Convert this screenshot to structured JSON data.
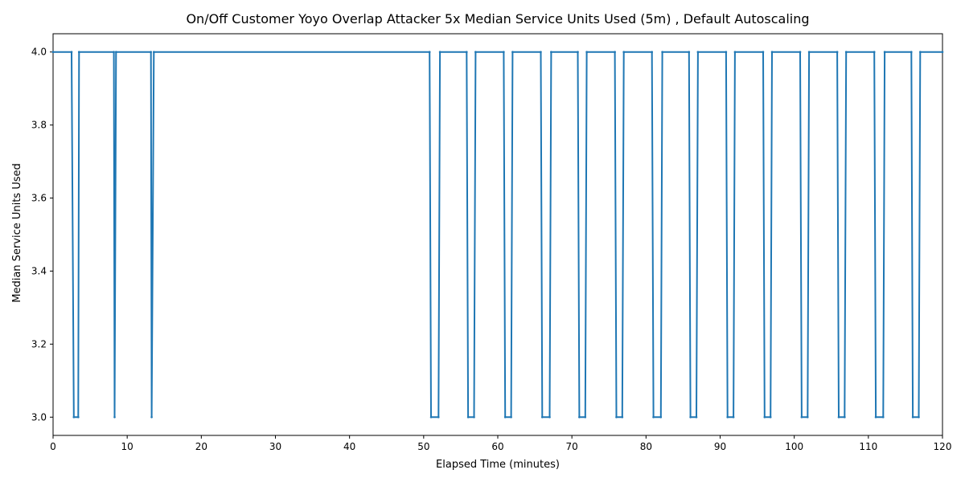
{
  "chart_data": {
    "type": "line",
    "title": "On/Off Customer Yoyo Overlap Attacker 5x Median Service Units Used (5m) , Default Autoscaling",
    "xlabel": "Elapsed Time (minutes)",
    "ylabel": "Median Service Units Used",
    "xlim": [
      0,
      120
    ],
    "ylim": [
      2.95,
      4.05
    ],
    "x_ticks": [
      "0",
      "10",
      "20",
      "30",
      "40",
      "50",
      "60",
      "70",
      "80",
      "90",
      "100",
      "110",
      "120"
    ],
    "y_ticks": [
      "3.0",
      "3.2",
      "3.4",
      "3.6",
      "3.8",
      "4.0"
    ],
    "grid": false,
    "legend": false,
    "color": "#1f77b4",
    "series": [
      {
        "x": [
          0,
          2.5,
          2.8,
          3.4,
          3.5,
          8.2,
          8.3,
          8.5,
          13.2,
          13.3,
          13.6,
          50.8,
          51.0,
          52.0,
          52.2,
          55.8,
          56.0,
          56.8,
          57.0,
          60.8,
          61.0,
          61.8,
          62.0,
          65.8,
          66.0,
          67.0,
          67.2,
          70.8,
          71.0,
          71.8,
          72.0,
          75.8,
          76.0,
          76.8,
          77.0,
          80.8,
          81.0,
          82.0,
          82.2,
          85.8,
          86.0,
          86.8,
          87.0,
          90.8,
          91.0,
          91.8,
          92.0,
          95.8,
          96.0,
          96.8,
          97.0,
          100.8,
          101.0,
          101.8,
          102.0,
          105.8,
          106.0,
          106.8,
          107.0,
          110.8,
          111.0,
          112.0,
          112.2,
          115.8,
          116.0,
          116.8,
          117.0,
          120
        ],
        "y": [
          4.0,
          4.0,
          3.0,
          3.0,
          4.0,
          4.0,
          3.0,
          4.0,
          4.0,
          3.0,
          4.0,
          4.0,
          3.0,
          3.0,
          4.0,
          4.0,
          3.0,
          3.0,
          4.0,
          4.0,
          3.0,
          3.0,
          4.0,
          4.0,
          3.0,
          3.0,
          4.0,
          4.0,
          3.0,
          3.0,
          4.0,
          4.0,
          3.0,
          3.0,
          4.0,
          4.0,
          3.0,
          3.0,
          4.0,
          4.0,
          3.0,
          3.0,
          4.0,
          4.0,
          3.0,
          3.0,
          4.0,
          4.0,
          3.0,
          3.0,
          4.0,
          4.0,
          3.0,
          3.0,
          4.0,
          4.0,
          3.0,
          3.0,
          4.0,
          4.0,
          3.0,
          3.0,
          4.0,
          4.0,
          3.0,
          3.0,
          4.0,
          4.0
        ]
      }
    ]
  }
}
